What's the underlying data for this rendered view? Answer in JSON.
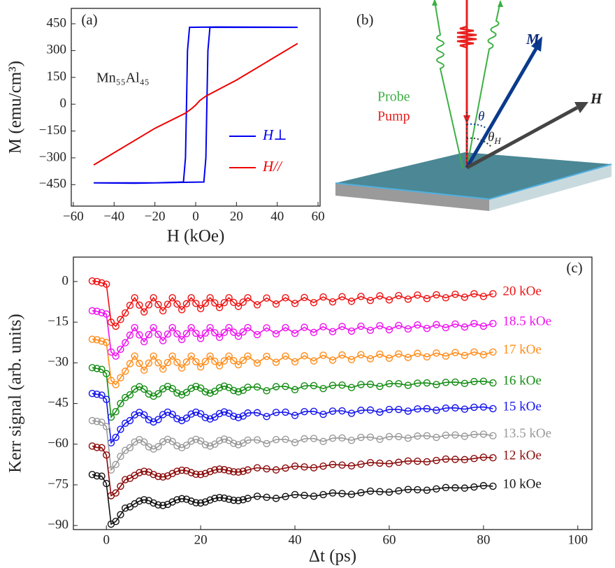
{
  "chart_data": [
    {
      "type": "line",
      "panel_label": "(a)",
      "annotation": "Mn₅₅Al₄₅",
      "xlabel": "H (kOe)",
      "ylabel": "M (emu/cm³)",
      "xlim": [
        -61,
        61
      ],
      "ylim": [
        -570,
        536
      ],
      "xticks": [
        {
          "value": -60,
          "label": "−60"
        },
        {
          "value": -40,
          "label": "−40"
        },
        {
          "value": -20,
          "label": "−20"
        },
        0,
        20,
        40,
        60
      ],
      "yticks": [
        {
          "value": -450,
          "label": "−450"
        },
        {
          "value": -300,
          "label": "−300"
        },
        {
          "value": -150,
          "label": "−150"
        },
        0,
        150,
        300,
        450
      ],
      "legend": "lower right",
      "series": [
        {
          "name": "H⊥",
          "color": "#0000ee",
          "x": [
            -50,
            -30,
            -10,
            4,
            5,
            5.5,
            6,
            7,
            20,
            50,
            10,
            -3,
            -4,
            -4.5,
            -5,
            -6,
            -20,
            -50
          ],
          "values": [
            -440,
            -442,
            -438,
            -435,
            -300,
            0,
            300,
            430,
            430,
            430,
            432,
            430,
            300,
            0,
            -300,
            -435,
            -440,
            -440
          ]
        },
        {
          "name": "H//",
          "color": "#ee0000",
          "x": [
            -50,
            -20,
            -5,
            -2,
            0,
            2,
            5,
            20,
            50
          ],
          "values": [
            -340,
            -135,
            -50,
            -25,
            -5,
            20,
            45,
            135,
            340
          ]
        }
      ]
    },
    {
      "type": "line",
      "markers": true,
      "panel_label": "(c)",
      "xlabel": "Δt (ps)",
      "ylabel": "Kerr signal (arb. units)",
      "xlim": [
        -7,
        103
      ],
      "ylim": [
        -91.5,
        9
      ],
      "xticks": [
        0,
        20,
        40,
        60,
        80,
        100
      ],
      "yticks": [
        0,
        {
          "value": -15,
          "label": "−15"
        },
        {
          "value": -30,
          "label": "−30"
        },
        {
          "value": -45,
          "label": "−45"
        },
        {
          "value": -60,
          "label": "−60"
        },
        {
          "value": -75,
          "label": "−75"
        },
        {
          "value": -90,
          "label": "−90"
        }
      ],
      "legend": "line ends",
      "x": [
        -3,
        -2,
        -1,
        0,
        1,
        2,
        3,
        4,
        5,
        6,
        7,
        8,
        9,
        10,
        11,
        12,
        13,
        14,
        15,
        16,
        17,
        18,
        19,
        20,
        21,
        22,
        23,
        24,
        25,
        26,
        27,
        28,
        29,
        30,
        32,
        34,
        36,
        38,
        40,
        42,
        44,
        46,
        48,
        50,
        52,
        54,
        56,
        58,
        60,
        62,
        64,
        66,
        68,
        70,
        72,
        74,
        76,
        78,
        80,
        82
      ],
      "series": [
        {
          "name": "20 kOe",
          "color": "#ee1111",
          "values": [
            0.2,
            0.0,
            -0.5,
            -1.0,
            -15.0,
            -16.5,
            -14.0,
            -11.6,
            -8.8,
            -6.0,
            -8.7,
            -11.2,
            -8.6,
            -6.0,
            -8.5,
            -10.8,
            -8.4,
            -6.0,
            -8.3,
            -10.4,
            -8.2,
            -6.0,
            -8.1,
            -10.0,
            -8.0,
            -6.0,
            -7.9,
            -9.6,
            -7.8,
            -6.0,
            -7.7,
            -9.2,
            -7.6,
            -6.0,
            -8.6,
            -6.1,
            -8.3,
            -6.0,
            -8.1,
            -5.9,
            -7.8,
            -5.7,
            -7.5,
            -5.6,
            -7.3,
            -5.5,
            -7.0,
            -5.3,
            -6.8,
            -5.2,
            -6.5,
            -5.0,
            -6.3,
            -4.9,
            -6.0,
            -4.7,
            -5.8,
            -4.5,
            -5.5,
            -4.5
          ]
        },
        {
          "name": "18.5 kOe",
          "color": "#ee11ee",
          "values": [
            -10.8,
            -11.0,
            -11.5,
            -12.0,
            -26.0,
            -27.5,
            -25.0,
            -22.6,
            -19.8,
            -17.0,
            -19.7,
            -22.2,
            -19.6,
            -17.0,
            -19.5,
            -21.8,
            -19.4,
            -17.0,
            -19.3,
            -21.4,
            -19.2,
            -17.0,
            -19.1,
            -21.0,
            -19.0,
            -17.0,
            -18.9,
            -20.6,
            -18.8,
            -17.0,
            -18.7,
            -20.2,
            -18.6,
            -17.0,
            -19.6,
            -17.1,
            -19.3,
            -17.0,
            -19.1,
            -16.9,
            -18.8,
            -16.7,
            -18.5,
            -16.6,
            -18.3,
            -16.5,
            -18.0,
            -16.3,
            -17.8,
            -16.2,
            -17.5,
            -16.0,
            -17.3,
            -15.9,
            -17.0,
            -15.7,
            -16.8,
            -15.5,
            -16.5,
            -15.5
          ]
        },
        {
          "name": "17 kOe",
          "color": "#ff8c1a",
          "values": [
            -21.3,
            -21.5,
            -22.0,
            -22.5,
            -36.5,
            -38.0,
            -35.5,
            -33.1,
            -30.3,
            -27.5,
            -30.2,
            -32.7,
            -30.1,
            -27.5,
            -30.0,
            -32.3,
            -29.9,
            -27.5,
            -29.8,
            -31.9,
            -29.7,
            -27.5,
            -29.6,
            -31.5,
            -29.5,
            -27.5,
            -29.4,
            -31.1,
            -29.3,
            -27.5,
            -29.2,
            -30.7,
            -29.1,
            -27.5,
            -30.1,
            -27.6,
            -29.8,
            -27.5,
            -29.6,
            -27.4,
            -29.3,
            -27.2,
            -29.0,
            -27.1,
            -28.8,
            -27.0,
            -28.5,
            -26.8,
            -28.3,
            -26.7,
            -28.0,
            -26.5,
            -27.8,
            -26.4,
            -27.5,
            -26.2,
            -27.3,
            -26.0,
            -27.0,
            -26.0
          ]
        },
        {
          "name": "16 kOe",
          "color": "#148c14",
          "values": [
            -31.8,
            -32.1,
            -32.4,
            -34.0,
            -50.0,
            -48.0,
            -45.0,
            -42.8,
            -41.8,
            -39.7,
            -38.8,
            -39.7,
            -41.5,
            -42.3,
            -41.4,
            -39.6,
            -38.7,
            -39.5,
            -41.1,
            -41.8,
            -40.9,
            -39.4,
            -38.7,
            -39.3,
            -40.7,
            -41.2,
            -40.5,
            -39.2,
            -38.6,
            -39.1,
            -40.2,
            -40.7,
            -40.1,
            -39.0,
            -38.9,
            -40.3,
            -38.8,
            -38.7,
            -39.9,
            -38.5,
            -38.4,
            -39.5,
            -38.3,
            -38.2,
            -39.1,
            -38.0,
            -37.9,
            -38.7,
            -37.7,
            -37.7,
            -38.3,
            -37.5,
            -37.4,
            -38.0,
            -37.2,
            -37.1,
            -37.6,
            -36.9,
            -36.8,
            -37.4
          ]
        },
        {
          "name": "15 kOe",
          "color": "#1414ee",
          "values": [
            -41.3,
            -41.6,
            -41.9,
            -43.5,
            -59.5,
            -57.5,
            -54.5,
            -52.3,
            -51.3,
            -49.2,
            -48.3,
            -49.2,
            -51.0,
            -51.8,
            -50.9,
            -49.1,
            -48.2,
            -49.0,
            -50.6,
            -51.3,
            -50.4,
            -48.9,
            -48.2,
            -48.8,
            -50.2,
            -50.7,
            -50.0,
            -48.7,
            -48.1,
            -48.6,
            -49.7,
            -50.2,
            -49.6,
            -48.5,
            -48.4,
            -49.8,
            -48.3,
            -48.2,
            -49.4,
            -48.0,
            -47.9,
            -49.0,
            -47.8,
            -47.7,
            -48.6,
            -47.5,
            -47.4,
            -48.2,
            -47.2,
            -47.2,
            -47.8,
            -47.0,
            -46.9,
            -47.5,
            -46.7,
            -46.6,
            -47.1,
            -46.4,
            -46.3,
            -46.9
          ]
        },
        {
          "name": "13.5 kOe",
          "color": "#9a9a9a",
          "values": [
            -51.3,
            -51.6,
            -51.9,
            -53.5,
            -69.5,
            -67.5,
            -64.5,
            -62.3,
            -61.3,
            -59.2,
            -58.3,
            -59.2,
            -61.0,
            -61.8,
            -60.9,
            -59.1,
            -58.2,
            -59.0,
            -60.6,
            -61.3,
            -60.4,
            -58.9,
            -58.2,
            -58.8,
            -60.2,
            -60.7,
            -60.0,
            -58.7,
            -58.1,
            -58.6,
            -59.7,
            -60.2,
            -59.6,
            -58.5,
            -58.4,
            -59.8,
            -58.3,
            -58.2,
            -59.4,
            -58.0,
            -57.9,
            -59.0,
            -57.8,
            -57.7,
            -58.6,
            -57.5,
            -57.4,
            -58.2,
            -57.2,
            -57.2,
            -57.8,
            -57.0,
            -56.9,
            -57.5,
            -56.7,
            -56.6,
            -57.1,
            -56.4,
            -56.3,
            -56.9
          ]
        },
        {
          "name": "12 kOe",
          "color": "#8b0a0a",
          "values": [
            -60.7,
            -61.2,
            -61.3,
            -64.0,
            -79.0,
            -78.0,
            -75.5,
            -73.1,
            -72.6,
            -71.5,
            -70.5,
            -70.0,
            -70.3,
            -71.2,
            -71.9,
            -72.1,
            -71.7,
            -70.8,
            -70.0,
            -69.6,
            -69.8,
            -70.5,
            -71.1,
            -71.2,
            -70.8,
            -70.1,
            -69.5,
            -69.2,
            -69.4,
            -69.8,
            -70.2,
            -70.3,
            -70.0,
            -69.5,
            -68.7,
            -69.1,
            -69.5,
            -68.8,
            -68.1,
            -68.4,
            -68.7,
            -68.1,
            -67.5,
            -67.7,
            -68.0,
            -67.4,
            -66.8,
            -67.0,
            -67.2,
            -66.7,
            -66.2,
            -66.3,
            -66.5,
            -66.0,
            -65.5,
            -65.6,
            -65.7,
            -65.3,
            -64.8,
            -65.0
          ]
        },
        {
          "name": "10 kOe",
          "color": "#111111",
          "values": [
            -71.2,
            -71.7,
            -71.8,
            -74.5,
            -89.5,
            -88.5,
            -86.0,
            -83.6,
            -83.1,
            -82.0,
            -81.0,
            -80.5,
            -80.8,
            -81.7,
            -82.4,
            -82.6,
            -82.2,
            -81.3,
            -80.5,
            -80.1,
            -80.3,
            -81.0,
            -81.6,
            -81.7,
            -81.3,
            -80.6,
            -80.0,
            -79.7,
            -79.9,
            -80.3,
            -80.7,
            -80.8,
            -80.5,
            -80.0,
            -79.2,
            -79.6,
            -80.0,
            -79.3,
            -78.6,
            -78.9,
            -79.2,
            -78.6,
            -78.0,
            -78.2,
            -78.5,
            -77.9,
            -77.3,
            -77.5,
            -77.7,
            -77.2,
            -76.7,
            -76.8,
            -77.0,
            -76.5,
            -76.0,
            -76.1,
            -76.2,
            -75.8,
            -75.3,
            -75.5
          ]
        }
      ]
    }
  ],
  "diagram": {
    "panel_label": "(b)",
    "magnetization": "M",
    "field": "H",
    "probe": "Probe",
    "pump": "Pump",
    "theta": "θ",
    "theta_h": {
      "symbol": "θ",
      "subscript": "H"
    }
  }
}
